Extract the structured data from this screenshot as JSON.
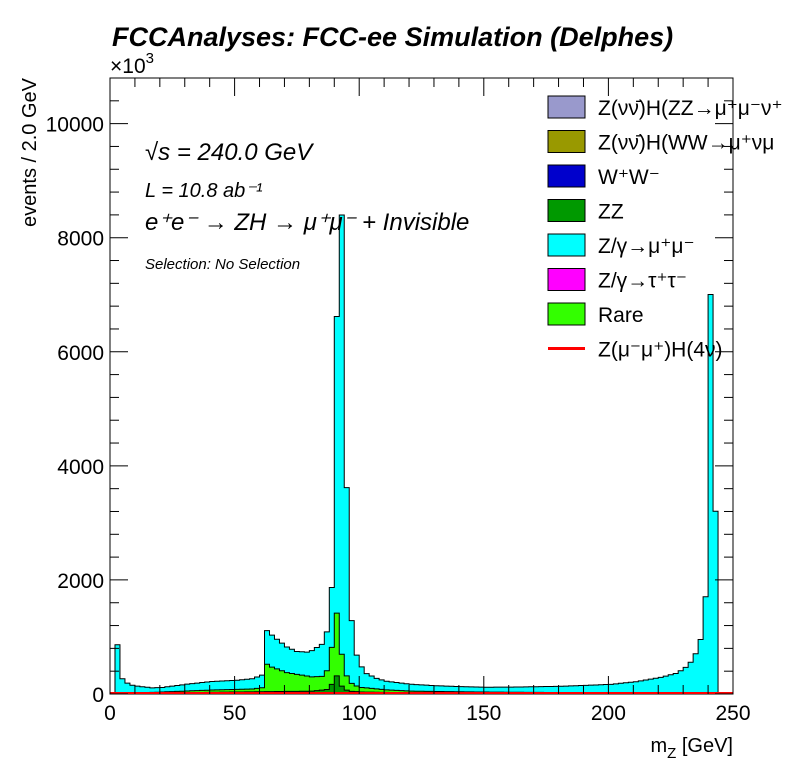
{
  "chart_data": {
    "type": "stacked-histogram",
    "title": "FCCAnalyses: FCC-ee Simulation (Delphes)",
    "xlabel": "m_Z [GeV]",
    "ylabel": "events / 2.0 GeV",
    "y_multiplier": "×10^3",
    "xlim": [
      0,
      250
    ],
    "ylim": [
      0,
      10800
    ],
    "bin_width": 2.0,
    "x_ticks": [
      0,
      50,
      100,
      150,
      200,
      250
    ],
    "y_ticks": [
      0,
      2000,
      4000,
      6000,
      8000,
      10000
    ],
    "annotations": {
      "sqrt_s": "√s = 240.0 GeV",
      "lumi": "L = 10.8 ab⁻¹",
      "process": "e⁺e⁻ → ZH → μ⁺μ⁻ + Invisible",
      "selection": "Selection: No Selection"
    },
    "legend_position": "top-right",
    "series": [
      {
        "name": "Z(νν̄)H(ZZ→μ⁺μ⁻ν⁺ν⁻)",
        "color": "#9999cc",
        "legend_text": "Z(νν̄)H(ZZ→μ⁺μ⁻ν⁺",
        "style": "fill"
      },
      {
        "name": "Z(νν̄)H(WW→μ⁺νμ⁻ν)",
        "color": "#999900",
        "legend_text": "Z(νν̄)H(WW→μ⁺νμ",
        "style": "fill"
      },
      {
        "name": "W⁺W⁻",
        "color": "#0000cc",
        "legend_text": "W⁺W⁻",
        "style": "fill"
      },
      {
        "name": "ZZ",
        "color": "#009900",
        "legend_text": "ZZ",
        "style": "fill"
      },
      {
        "name": "Z/γ→μ⁺μ⁻",
        "color": "#00ffff",
        "legend_text": "Z/γ→μ⁺μ⁻",
        "style": "fill"
      },
      {
        "name": "Z/γ→τ⁺τ⁻",
        "color": "#ff00ff",
        "legend_text": "Z/γ→τ⁺τ⁻",
        "style": "fill"
      },
      {
        "name": "Rare",
        "color": "#33ff00",
        "legend_text": "Rare",
        "style": "fill"
      },
      {
        "name": "Z(μ⁻μ⁺)H(4ν)",
        "color": "#ff0000",
        "legend_text": "Z(μ⁻μ⁺)H(4ν)",
        "style": "line"
      }
    ],
    "components": [
      {
        "name": "WW",
        "color": "#0000cc",
        "x": [
          0,
          20,
          40,
          60,
          80,
          88,
          90,
          92,
          94,
          100,
          120,
          150,
          200,
          250
        ],
        "y": [
          0,
          10,
          20,
          25,
          20,
          18,
          18,
          18,
          18,
          15,
          10,
          8,
          5,
          0
        ]
      },
      {
        "name": "ZZ",
        "color": "#009900",
        "x": [
          0,
          20,
          40,
          60,
          80,
          86,
          88,
          90,
          92,
          94,
          96,
          100,
          120,
          150,
          200,
          250
        ],
        "y": [
          0,
          5,
          10,
          15,
          30,
          60,
          150,
          300,
          120,
          50,
          30,
          20,
          10,
          6,
          4,
          0
        ]
      },
      {
        "name": "Rare",
        "color": "#33ff00",
        "x": [
          0,
          20,
          40,
          56,
          58,
          60,
          62,
          64,
          70,
          80,
          84,
          86,
          88,
          90,
          92,
          94,
          96,
          98,
          100,
          110,
          120,
          150,
          200,
          250
        ],
        "y": [
          0,
          20,
          40,
          50,
          60,
          70,
          480,
          430,
          330,
          250,
          240,
          330,
          650,
          1100,
          560,
          250,
          140,
          100,
          80,
          45,
          30,
          20,
          10,
          0
        ]
      },
      {
        "name": "Zmumu",
        "color": "#00ffff",
        "x": [
          0,
          2,
          4,
          6,
          8,
          10,
          16,
          20,
          30,
          40,
          50,
          56,
          60,
          62,
          64,
          66,
          70,
          74,
          78,
          80,
          82,
          84,
          86,
          88,
          90,
          92,
          94,
          96,
          98,
          100,
          102,
          106,
          110,
          120,
          130,
          140,
          150,
          160,
          180,
          200,
          210,
          220,
          226,
          228,
          230,
          232,
          234,
          236,
          238,
          240,
          242,
          244,
          246,
          250
        ],
        "y": [
          0,
          860,
          260,
          180,
          140,
          120,
          80,
          80,
          120,
          150,
          160,
          180,
          220,
          590,
          560,
          520,
          450,
          400,
          420,
          460,
          510,
          560,
          680,
          1050,
          5200,
          7700,
          3300,
          1100,
          540,
          360,
          250,
          185,
          150,
          120,
          100,
          90,
          85,
          90,
          110,
          150,
          200,
          280,
          350,
          400,
          460,
          550,
          700,
          950,
          1700,
          7000,
          3200,
          0,
          0,
          0
        ]
      }
    ]
  }
}
